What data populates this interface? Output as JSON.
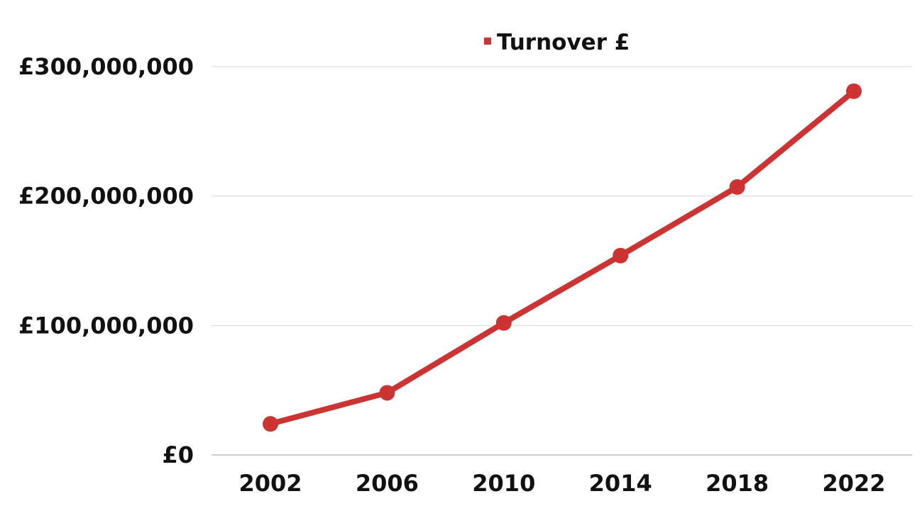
{
  "chart_data": {
    "type": "line",
    "title": "",
    "xlabel": "",
    "ylabel": "",
    "categories": [
      "2002",
      "2006",
      "2010",
      "2014",
      "2018",
      "2022"
    ],
    "series": [
      {
        "name": "Turnover £",
        "color": "#cc3333",
        "values": [
          24000000,
          48000000,
          102000000,
          154000000,
          207000000,
          281000000
        ]
      }
    ],
    "y_ticks": [
      {
        "value": 0,
        "label": "£0"
      },
      {
        "value": 100000000,
        "label": "£100,000,000"
      },
      {
        "value": 200000000,
        "label": "£200,000,000"
      },
      {
        "value": 300000000,
        "label": "£300,000,000"
      }
    ],
    "ylim": [
      0,
      300000000
    ],
    "grid": true,
    "legend_position": "top-center"
  }
}
